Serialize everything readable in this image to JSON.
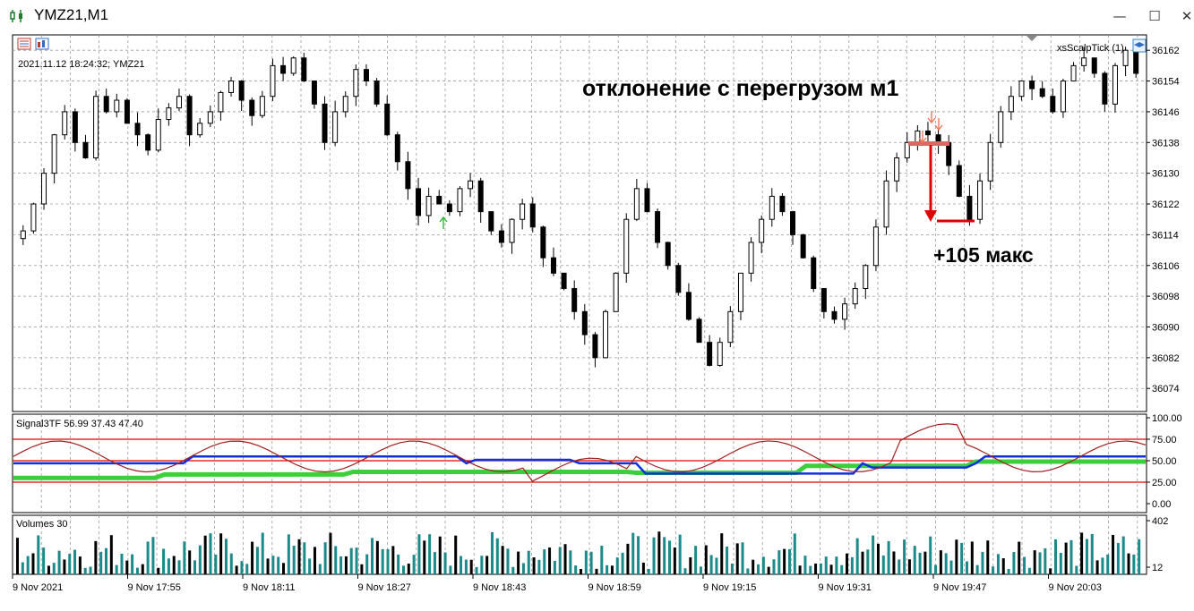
{
  "window": {
    "title": "YMZ21,M1",
    "controls": [
      "minimize",
      "maximize",
      "close"
    ]
  },
  "main_chart": {
    "info": "2021.11.12 18:24:32; YMZ21",
    "indicator_label": "xsScalpTick (1)",
    "annotation_title": "отклонение с перегрузом м1",
    "annotation_result": "+105 макс",
    "price_ticks": [
      "36162",
      "36154",
      "36146",
      "36138",
      "36130",
      "36122",
      "36114",
      "36106",
      "36098",
      "36090",
      "36082",
      "36074"
    ]
  },
  "signal_panel": {
    "label": "Signal3TF 56.99 37.43 47.40",
    "ticks": [
      "100.00",
      "75.00",
      "50.00",
      "25.00",
      "0.00"
    ]
  },
  "volume_panel": {
    "label": "Volumes 30",
    "ticks": [
      "402",
      "12"
    ]
  },
  "time_axis": [
    "9 Nov 2021",
    "9 Nov 17:55",
    "9 Nov 18:11",
    "9 Nov 18:27",
    "9 Nov 18:43",
    "9 Nov 18:59",
    "9 Nov 19:15",
    "9 Nov 19:31",
    "9 Nov 19:47",
    "9 Nov 20:03"
  ],
  "chart_data": {
    "type": "candlestick",
    "symbol": "YMZ21",
    "timeframe": "M1",
    "ylim": [
      36068,
      36166
    ],
    "close_path": [
      36115,
      36122,
      36130,
      36140,
      36146,
      36138,
      36134,
      36150,
      36146,
      36149,
      36143,
      36140,
      36136,
      36144,
      36147,
      36150,
      36140,
      36143,
      36146,
      36151,
      36154,
      36149,
      36145,
      36150,
      36158,
      36156,
      36160,
      36154,
      36148,
      36138,
      36146,
      36150,
      36157,
      36154,
      36148,
      36140,
      36133,
      36126,
      36119,
      36124,
      36122,
      36120,
      36126,
      36128,
      36120,
      36115,
      36112,
      36118,
      36122,
      36116,
      36108,
      36104,
      36100,
      36094,
      36088,
      36082,
      36094,
      36104,
      36118,
      36126,
      36120,
      36112,
      36106,
      36099,
      36092,
      36086,
      36080,
      36086,
      36094,
      36104,
      36112,
      36118,
      36124,
      36120,
      36114,
      36108,
      36100,
      36094,
      36092,
      36096,
      36100,
      36106,
      36116,
      36128,
      36134,
      36138,
      36141,
      36140,
      36138,
      36132,
      36124,
      36118,
      36128,
      36138,
      36146,
      36150,
      36154,
      36152,
      36150,
      36146,
      36154,
      36158,
      36160,
      36156,
      36148,
      36158,
      36162,
      36156
    ],
    "lows_marked": [
      36082,
      36080
    ],
    "annotation_drop": {
      "from": 36140,
      "to": 36119,
      "points": "+105 макс"
    }
  }
}
